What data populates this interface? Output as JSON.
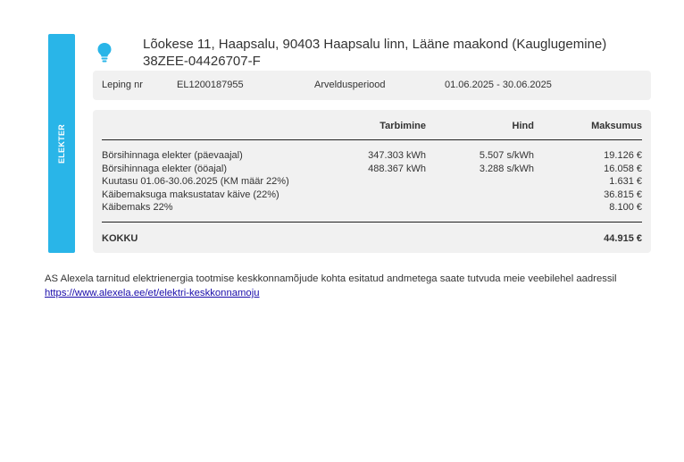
{
  "side_label": "ELEKTER",
  "icon": "lightbulb-icon",
  "accent": "#29b5e8",
  "address": "Lõokese 11, Haapsalu, 90403 Haapsalu linn, Lääne maakond (Kauglugemine)",
  "code": "38ZEE-04426707-F",
  "info": {
    "contract_label": "Leping nr",
    "contract_value": "EL1200187955",
    "period_label": "Arveldusperiood",
    "period_value": "01.06.2025 - 30.06.2025"
  },
  "table": {
    "headers": {
      "consumption": "Tarbimine",
      "price": "Hind",
      "amount": "Maksumus"
    },
    "rows": [
      {
        "name": "Börsihinnaga elekter (päevaajal)",
        "consumption": "347.303 kWh",
        "price": "5.507 s/kWh",
        "amount": "19.126 €"
      },
      {
        "name": "Börsihinnaga elekter (ööajal)",
        "consumption": "488.367 kWh",
        "price": "3.288 s/kWh",
        "amount": "16.058 €"
      },
      {
        "name": "Kuutasu 01.06-30.06.2025 (KM määr 22%)",
        "consumption": "",
        "price": "",
        "amount": "1.631 €"
      },
      {
        "name": "Käibemaksuga maksustatav käive (22%)",
        "consumption": "",
        "price": "",
        "amount": "36.815 €"
      },
      {
        "name": "Käibemaks 22%",
        "consumption": "",
        "price": "",
        "amount": "8.100 €"
      }
    ],
    "total_label": "KOKKU",
    "total_value": "44.915 €"
  },
  "footer": {
    "text": "AS Alexela tarnitud elektrienergia tootmise keskkonnamõjude kohta esitatud andmetega saate tutvuda meie veebilehel aadressil ",
    "link": "https://www.alexela.ee/et/elektri-keskkonnamoju"
  }
}
